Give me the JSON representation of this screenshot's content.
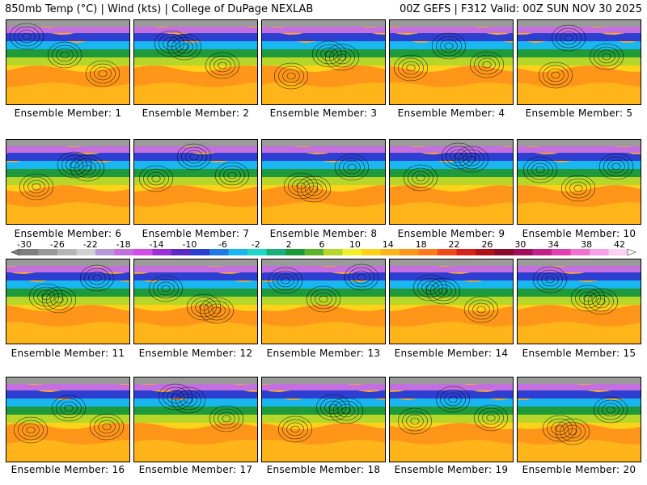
{
  "header": {
    "left": "850mb Temp (°C) | Wind (kts) | College of DuPage NEXLAB",
    "right": "00Z GEFS | F312 Valid: 00Z SUN NOV 30 2025"
  },
  "panels": [
    {
      "label": "Ensemble Member: 1"
    },
    {
      "label": "Ensemble Member: 2"
    },
    {
      "label": "Ensemble Member: 3"
    },
    {
      "label": "Ensemble Member: 4"
    },
    {
      "label": "Ensemble Member: 5"
    },
    {
      "label": "Ensemble Member: 6"
    },
    {
      "label": "Ensemble Member: 7"
    },
    {
      "label": "Ensemble Member: 8"
    },
    {
      "label": "Ensemble Member: 9"
    },
    {
      "label": "Ensemble Member: 10"
    },
    {
      "label": "Ensemble Member: 11"
    },
    {
      "label": "Ensemble Member: 12"
    },
    {
      "label": "Ensemble Member: 13"
    },
    {
      "label": "Ensemble Member: 14"
    },
    {
      "label": "Ensemble Member: 15"
    },
    {
      "label": "Ensemble Member: 16"
    },
    {
      "label": "Ensemble Member: 17"
    },
    {
      "label": "Ensemble Member: 18"
    },
    {
      "label": "Ensemble Member: 19"
    },
    {
      "label": "Ensemble Member: 20"
    }
  ],
  "colorbar": {
    "tick_labels": [
      "-30",
      "-26",
      "-22",
      "-18",
      "-14",
      "-10",
      "-6",
      "-2",
      "2",
      "6",
      "10",
      "14",
      "18",
      "22",
      "26",
      "30",
      "34",
      "38",
      "42"
    ],
    "colors": [
      "#7f7f7f",
      "#9a9a9a",
      "#b5b5b5",
      "#d0d0d0",
      "#b897d8",
      "#c46fe0",
      "#d24ce8",
      "#9b2fd6",
      "#5a2ac2",
      "#2d3fd0",
      "#1f7ae6",
      "#19b6ef",
      "#1fd6c6",
      "#17b07a",
      "#1e9a3a",
      "#5db32a",
      "#b6d62a",
      "#f0f02a",
      "#ffd21a",
      "#ffb41a",
      "#ff961a",
      "#ff781a",
      "#f04a1a",
      "#d4201a",
      "#b0101a",
      "#8a0a2a",
      "#a0105a",
      "#c0208a",
      "#e040b0",
      "#f070d0",
      "#f8a0e8",
      "#fcd0f4"
    ]
  }
}
